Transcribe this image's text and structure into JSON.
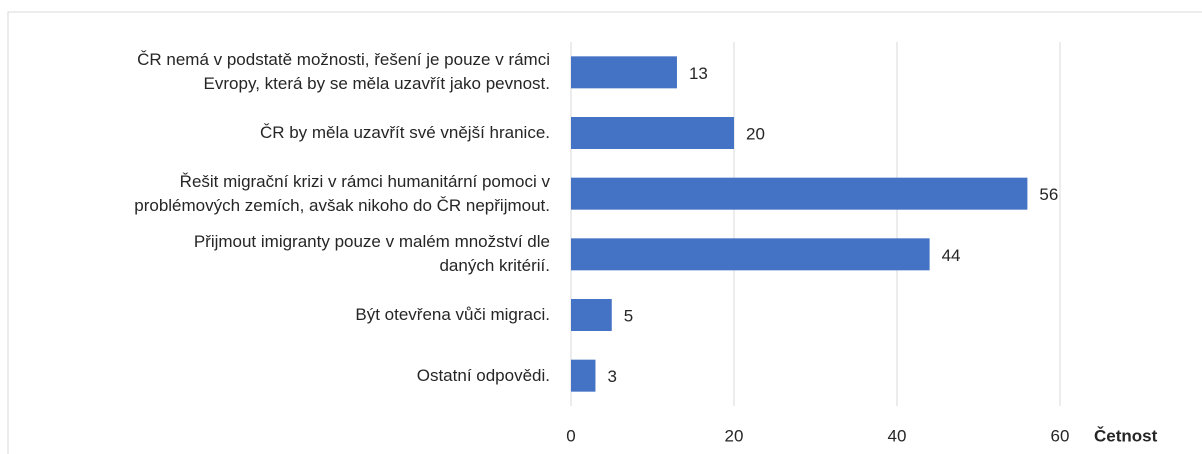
{
  "chart_data": {
    "type": "bar",
    "orientation": "horizontal",
    "categories": [
      "ČR nemá v podstatě možnosti, řešení je pouze v rámci\nEvropy, která by se měla uzavřít jako pevnost.",
      "ČR by měla uzavřít své vnější hranice.",
      "Řešit migrační krizi v rámci humanitární pomoci v\nproblémových zemích, avšak nikoho do ČR nepřijmout.",
      "Přijmout imigranty pouze v malém množství dle\ndaných kritérií.",
      "Být otevřena vůči migraci.",
      "Ostatní odpovědi."
    ],
    "values": [
      13,
      20,
      56,
      44,
      5,
      3
    ],
    "color": "#4472c4",
    "xlabel": "Četnost",
    "xlim": [
      0,
      60
    ],
    "xticks": [
      0,
      20,
      40,
      60
    ],
    "grid": true
  }
}
